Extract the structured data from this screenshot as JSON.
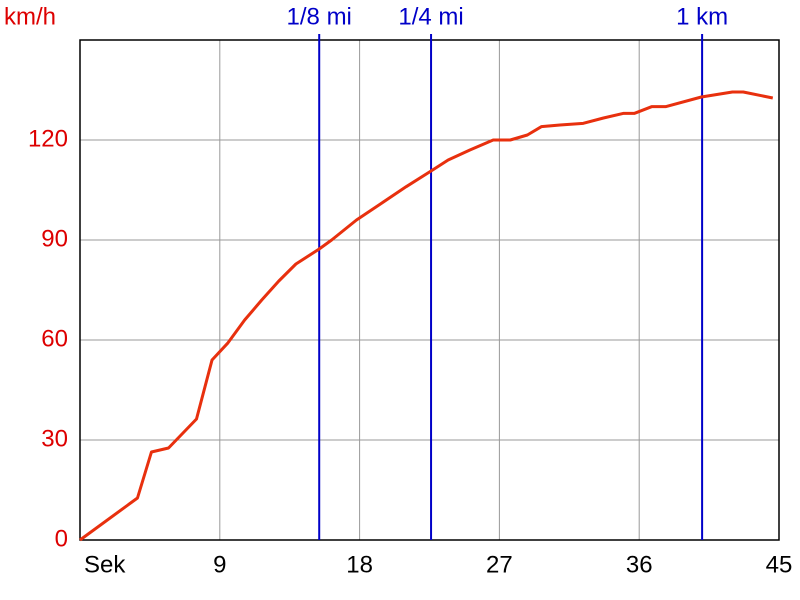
{
  "chart_data": {
    "type": "line",
    "y_axis_label": "km/h",
    "x": [
      0,
      3.7,
      4.6,
      5.7,
      7.5,
      8.5,
      9.5,
      10.6,
      11.7,
      12.8,
      13.9,
      15.4,
      16.2,
      17.8,
      19.4,
      21,
      22.6,
      23.7,
      25.1,
      26.6,
      27.7,
      28.8,
      29.7,
      30.9,
      32.4,
      33.7,
      35,
      35.7,
      36.8,
      37.7,
      40,
      42,
      42.7,
      44.6
    ],
    "values": [
      0,
      12.6,
      26.4,
      27.6,
      36.3,
      54,
      59,
      66,
      72,
      77.7,
      82.8,
      87.3,
      90,
      96,
      101,
      106,
      110.7,
      114,
      117,
      120,
      120,
      121.5,
      124,
      124.5,
      125,
      126.6,
      128,
      128,
      130,
      130,
      132.9,
      134.4,
      134.4,
      132.6
    ],
    "color": "#e8300e",
    "xlim": [
      0,
      45
    ],
    "ylim": [
      0,
      150
    ],
    "xticks": [
      {
        "value": 0,
        "label": "Sek"
      },
      9,
      18,
      27,
      36,
      45
    ],
    "yticks": [
      0,
      30,
      60,
      90,
      120
    ],
    "grid": true,
    "y_tick_color": "#dd0000",
    "markers": [
      {
        "label": "1/8 mi",
        "x": 15.4
      },
      {
        "label": "1/4 mi",
        "x": 22.6
      },
      {
        "label": "1 km",
        "x": 40.05
      }
    ],
    "marker_color": "#0000c8"
  }
}
